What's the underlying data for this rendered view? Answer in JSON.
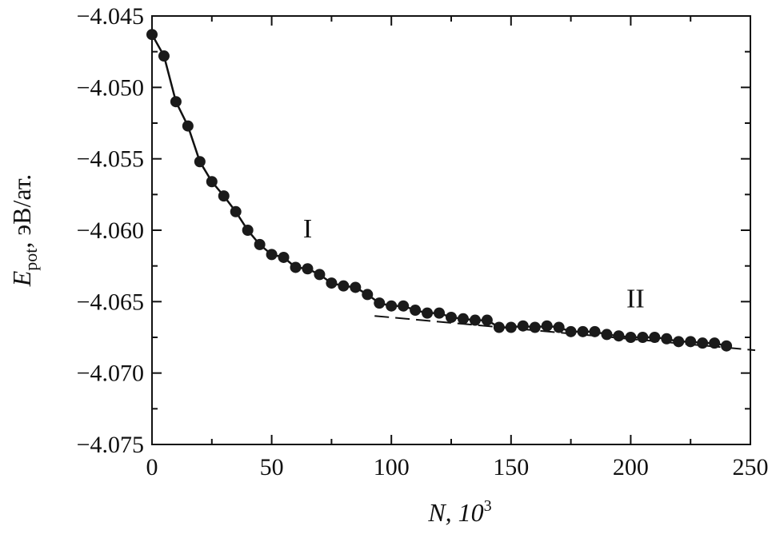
{
  "chart_data": {
    "type": "scatter",
    "xlabel": "N, 10",
    "xlabel_superscript": "3",
    "ylabel_main": "E",
    "ylabel_sub": "pot",
    "ylabel_units": ", эВ/ат.",
    "xlim": [
      0,
      250
    ],
    "ylim": [
      -4.075,
      -4.045
    ],
    "x_ticks": [
      0,
      50,
      100,
      150,
      200,
      250
    ],
    "x_tick_labels": [
      "0",
      "50",
      "100",
      "150",
      "200",
      "250"
    ],
    "y_ticks": [
      -4.045,
      -4.05,
      -4.055,
      -4.06,
      -4.065,
      -4.07,
      -4.075
    ],
    "y_tick_labels": [
      "−4.045",
      "−4.050",
      "−4.055",
      "−4.060",
      "−4.065",
      "−4.070",
      "−4.075"
    ],
    "grid": false,
    "series": [
      {
        "x": [
          0,
          5,
          10,
          15,
          20,
          25,
          30,
          35,
          40,
          45,
          50,
          55,
          60,
          65,
          70,
          75,
          80,
          85,
          90,
          95,
          100,
          105,
          110,
          115,
          120,
          125,
          130,
          135,
          140,
          145,
          150,
          155,
          160,
          165,
          170,
          175,
          180,
          185,
          190,
          195,
          200,
          205,
          210,
          215,
          220,
          225,
          230,
          235,
          240
        ],
        "y": [
          -4.0463,
          -4.0478,
          -4.051,
          -4.0527,
          -4.0552,
          -4.0566,
          -4.0576,
          -4.0587,
          -4.06,
          -4.061,
          -4.0617,
          -4.0619,
          -4.0626,
          -4.0627,
          -4.0631,
          -4.0637,
          -4.0639,
          -4.064,
          -4.0645,
          -4.0651,
          -4.0653,
          -4.0653,
          -4.0656,
          -4.0658,
          -4.0658,
          -4.0661,
          -4.0662,
          -4.0663,
          -4.0663,
          -4.0668,
          -4.0668,
          -4.0667,
          -4.0668,
          -4.0667,
          -4.0668,
          -4.0671,
          -4.0671,
          -4.0671,
          -4.0673,
          -4.0674,
          -4.0675,
          -4.0675,
          -4.0675,
          -4.0676,
          -4.0678,
          -4.0678,
          -4.0679,
          -4.0679,
          -4.0681
        ]
      }
    ],
    "trend_line": {
      "x": [
        93,
        252
      ],
      "y": [
        -4.066,
        -4.0684
      ]
    },
    "annotations": [
      {
        "text": "I",
        "x": 65,
        "y": -4.0605
      },
      {
        "text": "II",
        "x": 202,
        "y": -4.0654
      }
    ]
  }
}
